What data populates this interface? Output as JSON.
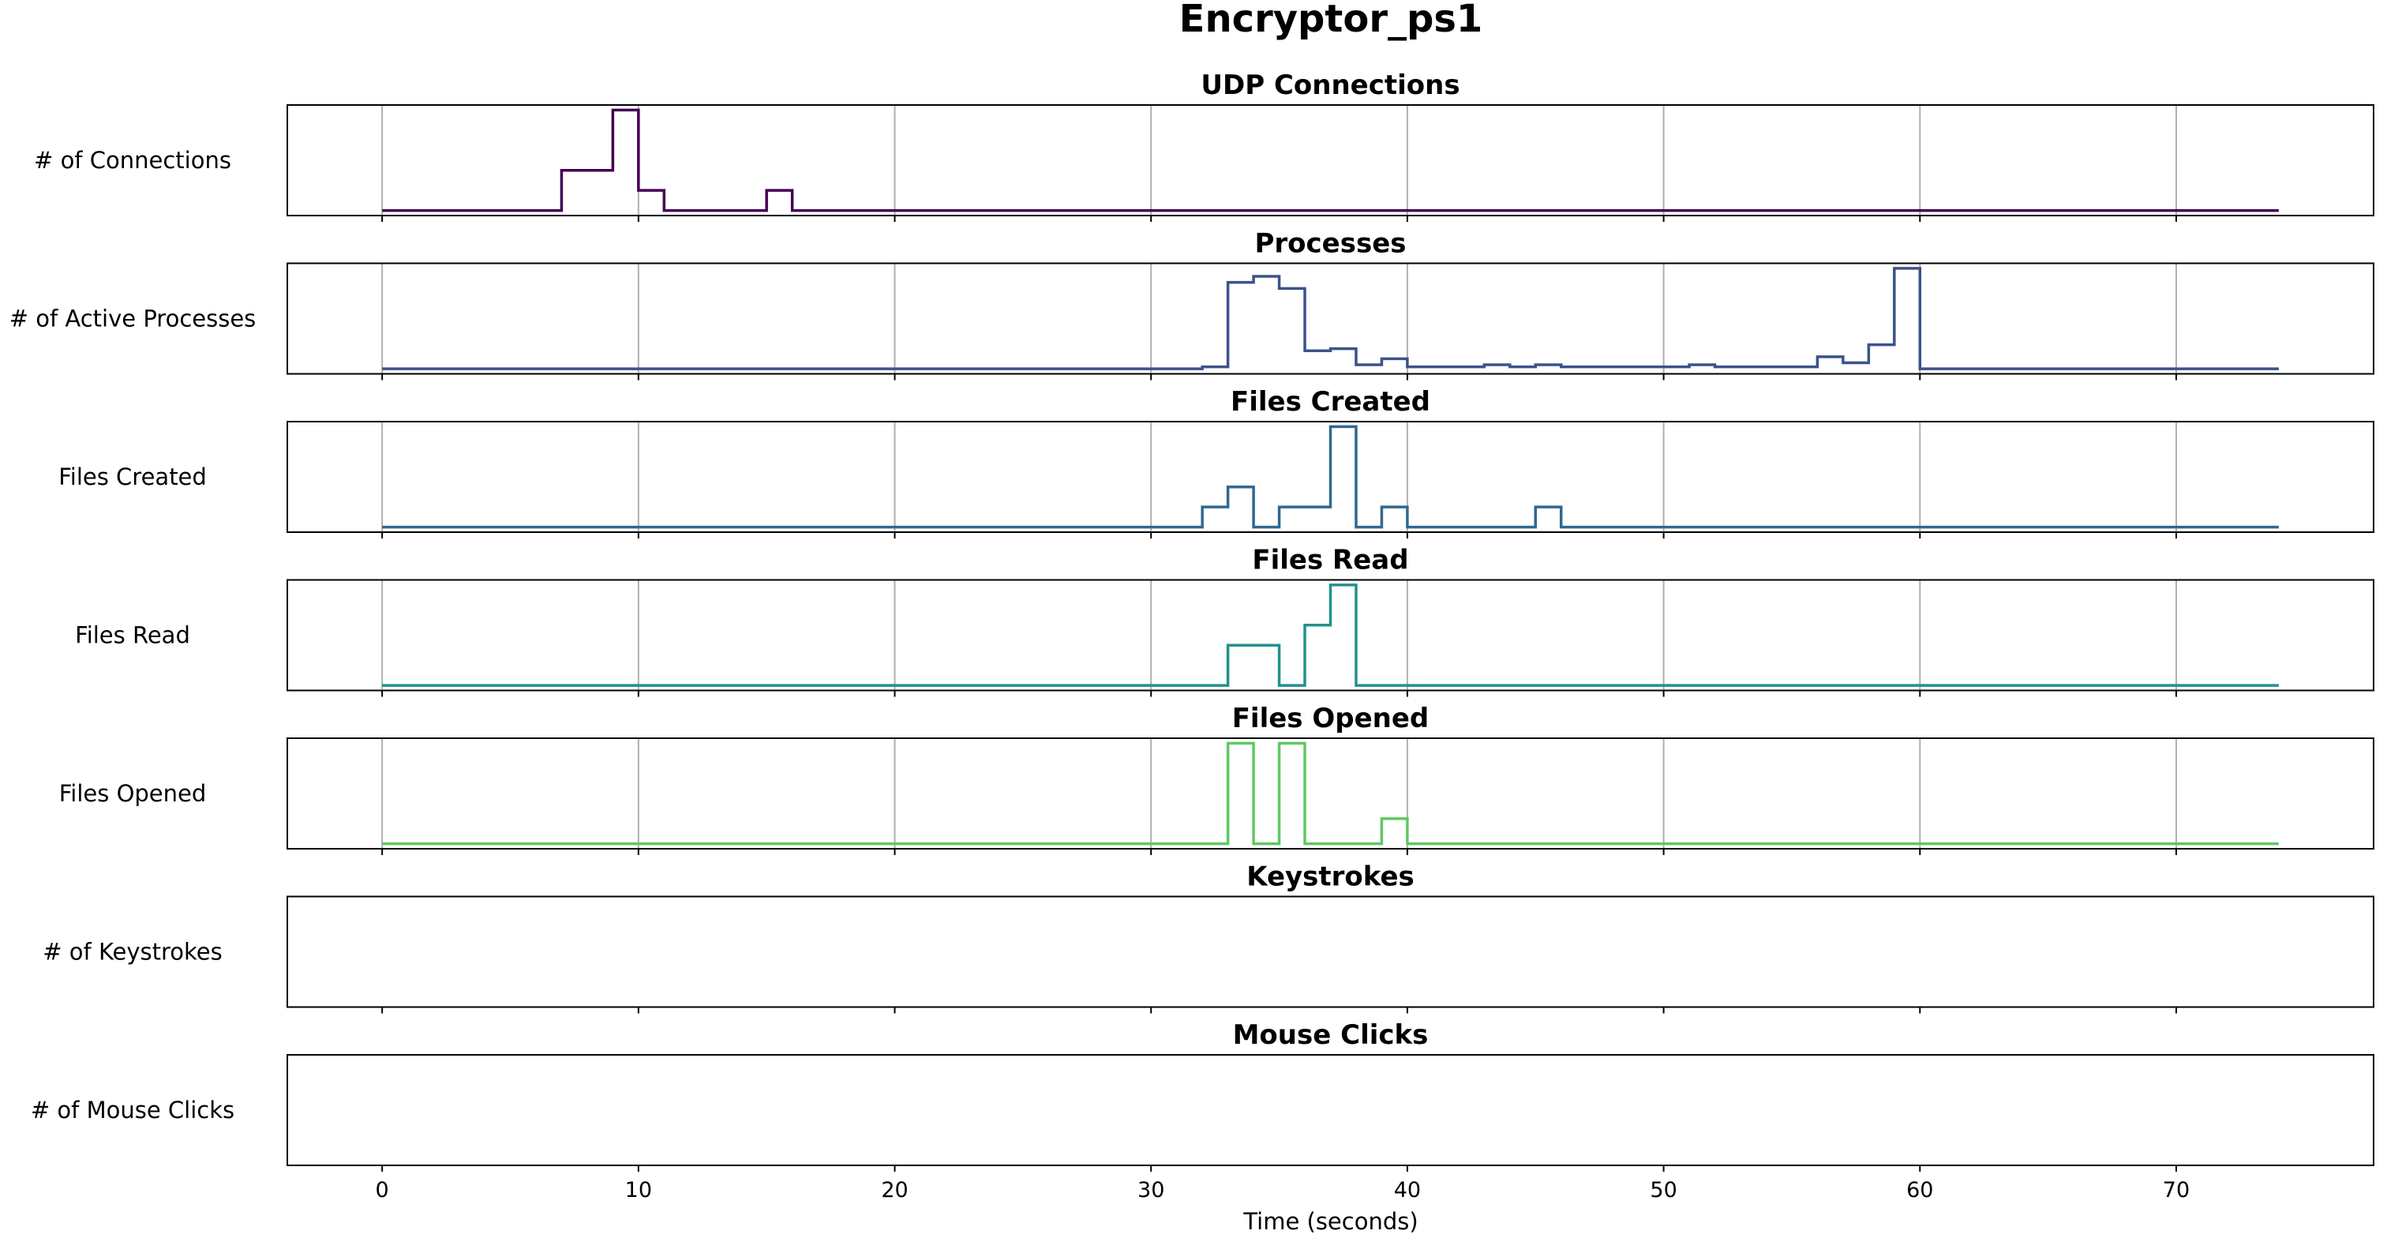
{
  "chart_data": {
    "type": "line",
    "title": "Encryptor_ps1",
    "xlabel": "Time (seconds)",
    "xlim": [
      -3.7,
      77.7
    ],
    "xticks": [
      0,
      10,
      20,
      30,
      40,
      50,
      60,
      70
    ],
    "grid": true,
    "step": "post",
    "panels": [
      {
        "title": "UDP Connections",
        "ylabel": "# of Connections",
        "color": "#440154",
        "x": [
          0,
          1,
          2,
          3,
          4,
          5,
          6,
          7,
          8,
          9,
          10,
          11,
          12,
          13,
          14,
          15,
          16,
          17,
          18,
          19,
          20,
          21,
          22,
          23,
          24,
          25,
          26,
          27,
          28,
          29,
          30,
          31,
          32,
          33,
          34,
          35,
          36,
          37,
          38,
          39,
          40,
          41,
          42,
          43,
          44,
          45,
          46,
          47,
          48,
          49,
          50,
          51,
          52,
          53,
          54,
          55,
          56,
          57,
          58,
          59,
          60,
          61,
          62,
          63,
          64,
          65,
          66,
          67,
          68,
          69,
          70,
          71,
          72,
          73,
          74
        ],
        "values": [
          0,
          0,
          0,
          0,
          0,
          0,
          0,
          2,
          2,
          5,
          1,
          0,
          0,
          0,
          0,
          1,
          0,
          0,
          0,
          0,
          0,
          0,
          0,
          0,
          0,
          0,
          0,
          0,
          0,
          0,
          0,
          0,
          0,
          0,
          0,
          0,
          0,
          0,
          0,
          0,
          0,
          0,
          0,
          0,
          0,
          0,
          0,
          0,
          0,
          0,
          0,
          0,
          0,
          0,
          0,
          0,
          0,
          0,
          0,
          0,
          0,
          0,
          0,
          0,
          0,
          0,
          0,
          0,
          0,
          0,
          0,
          0,
          0,
          0,
          0
        ],
        "ylim": [
          -0.25,
          5.25
        ]
      },
      {
        "title": "Processes",
        "ylabel": "# of Active Processes",
        "color": "#3b528b",
        "x": [
          0,
          1,
          2,
          3,
          4,
          5,
          6,
          7,
          8,
          9,
          10,
          11,
          12,
          13,
          14,
          15,
          16,
          17,
          18,
          19,
          20,
          21,
          22,
          23,
          24,
          25,
          26,
          27,
          28,
          29,
          30,
          31,
          32,
          33,
          34,
          35,
          36,
          37,
          38,
          39,
          40,
          41,
          42,
          43,
          44,
          45,
          46,
          47,
          48,
          49,
          50,
          51,
          52,
          53,
          54,
          55,
          56,
          57,
          58,
          59,
          60,
          61,
          62,
          63,
          64,
          65,
          66,
          67,
          68,
          69,
          70,
          71,
          72,
          73,
          74
        ],
        "values": [
          0,
          0,
          0,
          0,
          0,
          0,
          0,
          0,
          0,
          0,
          0,
          0,
          0,
          0,
          0,
          0,
          0,
          0,
          0,
          0,
          0,
          0,
          0,
          0,
          0,
          0,
          0,
          0,
          0,
          0,
          0,
          0,
          1,
          43,
          46,
          40,
          9,
          10,
          2,
          5,
          1,
          1,
          1,
          2,
          1,
          2,
          1,
          1,
          1,
          1,
          1,
          2,
          1,
          1,
          1,
          1,
          6,
          3,
          12,
          50,
          0,
          0,
          0,
          0,
          0,
          0,
          0,
          0,
          0,
          0,
          0,
          0,
          0,
          0,
          0
        ],
        "ylim": [
          -2.5,
          52.5
        ]
      },
      {
        "title": "Files Created",
        "ylabel": "Files Created",
        "color": "#31688e",
        "x": [
          0,
          1,
          2,
          3,
          4,
          5,
          6,
          7,
          8,
          9,
          10,
          11,
          12,
          13,
          14,
          15,
          16,
          17,
          18,
          19,
          20,
          21,
          22,
          23,
          24,
          25,
          26,
          27,
          28,
          29,
          30,
          31,
          32,
          33,
          34,
          35,
          36,
          37,
          38,
          39,
          40,
          41,
          42,
          43,
          44,
          45,
          46,
          47,
          48,
          49,
          50,
          51,
          52,
          53,
          54,
          55,
          56,
          57,
          58,
          59,
          60,
          61,
          62,
          63,
          64,
          65,
          66,
          67,
          68,
          69,
          70,
          71,
          72,
          73,
          74
        ],
        "values": [
          0,
          0,
          0,
          0,
          0,
          0,
          0,
          0,
          0,
          0,
          0,
          0,
          0,
          0,
          0,
          0,
          0,
          0,
          0,
          0,
          0,
          0,
          0,
          0,
          0,
          0,
          0,
          0,
          0,
          0,
          0,
          0,
          1,
          2,
          0,
          1,
          1,
          5,
          0,
          1,
          0,
          0,
          0,
          0,
          0,
          1,
          0,
          0,
          0,
          0,
          0,
          0,
          0,
          0,
          0,
          0,
          0,
          0,
          0,
          0,
          0,
          0,
          0,
          0,
          0,
          0,
          0,
          0,
          0,
          0,
          0,
          0,
          0,
          0,
          0
        ],
        "ylim": [
          -0.25,
          5.25
        ]
      },
      {
        "title": "Files Read",
        "ylabel": "Files Read",
        "color": "#21918c",
        "x": [
          0,
          1,
          2,
          3,
          4,
          5,
          6,
          7,
          8,
          9,
          10,
          11,
          12,
          13,
          14,
          15,
          16,
          17,
          18,
          19,
          20,
          21,
          22,
          23,
          24,
          25,
          26,
          27,
          28,
          29,
          30,
          31,
          32,
          33,
          34,
          35,
          36,
          37,
          38,
          39,
          40,
          41,
          42,
          43,
          44,
          45,
          46,
          47,
          48,
          49,
          50,
          51,
          52,
          53,
          54,
          55,
          56,
          57,
          58,
          59,
          60,
          61,
          62,
          63,
          64,
          65,
          66,
          67,
          68,
          69,
          70,
          71,
          72,
          73,
          74
        ],
        "values": [
          0,
          0,
          0,
          0,
          0,
          0,
          0,
          0,
          0,
          0,
          0,
          0,
          0,
          0,
          0,
          0,
          0,
          0,
          0,
          0,
          0,
          0,
          0,
          0,
          0,
          0,
          0,
          0,
          0,
          0,
          0,
          0,
          0,
          2,
          2,
          0,
          3,
          5,
          0,
          0,
          0,
          0,
          0,
          0,
          0,
          0,
          0,
          0,
          0,
          0,
          0,
          0,
          0,
          0,
          0,
          0,
          0,
          0,
          0,
          0,
          0,
          0,
          0,
          0,
          0,
          0,
          0,
          0,
          0,
          0,
          0,
          0,
          0,
          0,
          0
        ],
        "ylim": [
          -0.25,
          5.25
        ]
      },
      {
        "title": "Files Opened",
        "ylabel": "Files Opened",
        "color": "#5ec962",
        "x": [
          0,
          1,
          2,
          3,
          4,
          5,
          6,
          7,
          8,
          9,
          10,
          11,
          12,
          13,
          14,
          15,
          16,
          17,
          18,
          19,
          20,
          21,
          22,
          23,
          24,
          25,
          26,
          27,
          28,
          29,
          30,
          31,
          32,
          33,
          34,
          35,
          36,
          37,
          38,
          39,
          40,
          41,
          42,
          43,
          44,
          45,
          46,
          47,
          48,
          49,
          50,
          51,
          52,
          53,
          54,
          55,
          56,
          57,
          58,
          59,
          60,
          61,
          62,
          63,
          64,
          65,
          66,
          67,
          68,
          69,
          70,
          71,
          72,
          73,
          74
        ],
        "values": [
          0,
          0,
          0,
          0,
          0,
          0,
          0,
          0,
          0,
          0,
          0,
          0,
          0,
          0,
          0,
          0,
          0,
          0,
          0,
          0,
          0,
          0,
          0,
          0,
          0,
          0,
          0,
          0,
          0,
          0,
          0,
          0,
          0,
          4,
          0,
          4,
          0,
          0,
          0,
          1,
          0,
          0,
          0,
          0,
          0,
          0,
          0,
          0,
          0,
          0,
          0,
          0,
          0,
          0,
          0,
          0,
          0,
          0,
          0,
          0,
          0,
          0,
          0,
          0,
          0,
          0,
          0,
          0,
          0,
          0,
          0,
          0,
          0,
          0,
          0
        ],
        "ylim": [
          -0.2,
          4.2
        ]
      },
      {
        "title": "Keystrokes",
        "ylabel": "# of Keystrokes",
        "color": "#95d840",
        "x": [],
        "values": [],
        "ylim": [
          0,
          1
        ]
      },
      {
        "title": "Mouse Clicks",
        "ylabel": "# of Mouse Clicks",
        "color": "#fde725",
        "x": [],
        "values": [],
        "ylim": [
          0,
          1
        ]
      }
    ]
  }
}
